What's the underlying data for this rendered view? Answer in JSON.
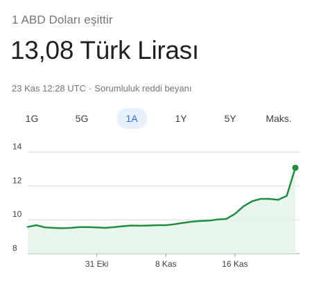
{
  "header": {
    "subtitle": "1 ABD Doları eşittir",
    "rate": "13,08 Türk Lirası",
    "timestamp": "23 Kas 12:28 UTC",
    "separator": "·",
    "disclaimer": "Sorumluluk reddi beyanı"
  },
  "range_tabs": [
    {
      "label": "1G",
      "active": false
    },
    {
      "label": "5G",
      "active": false
    },
    {
      "label": "1A",
      "active": true
    },
    {
      "label": "1Y",
      "active": false
    },
    {
      "label": "5Y",
      "active": false
    },
    {
      "label": "Maks.",
      "active": false
    }
  ],
  "colors": {
    "line": "#1e8e3e",
    "fill": "#e6f4ea",
    "grid": "#dadce0",
    "active_tab": "#1a73e8"
  },
  "chart_data": {
    "type": "line",
    "y_ticks": [
      "14",
      "12",
      "10",
      "8"
    ],
    "ylim": [
      8,
      14.6
    ],
    "x_tick_labels": [
      "31 Eki",
      "8 Kas",
      "16 Kas"
    ],
    "x_tick_index": [
      8,
      16,
      24
    ],
    "grid": true,
    "values": [
      9.58,
      9.68,
      9.55,
      9.52,
      9.5,
      9.52,
      9.57,
      9.57,
      9.55,
      9.52,
      9.57,
      9.62,
      9.66,
      9.65,
      9.66,
      9.68,
      9.68,
      9.74,
      9.82,
      9.89,
      9.93,
      9.95,
      10.02,
      10.05,
      10.35,
      10.8,
      11.1,
      11.24,
      11.24,
      11.18,
      11.42,
      13.08
    ]
  }
}
